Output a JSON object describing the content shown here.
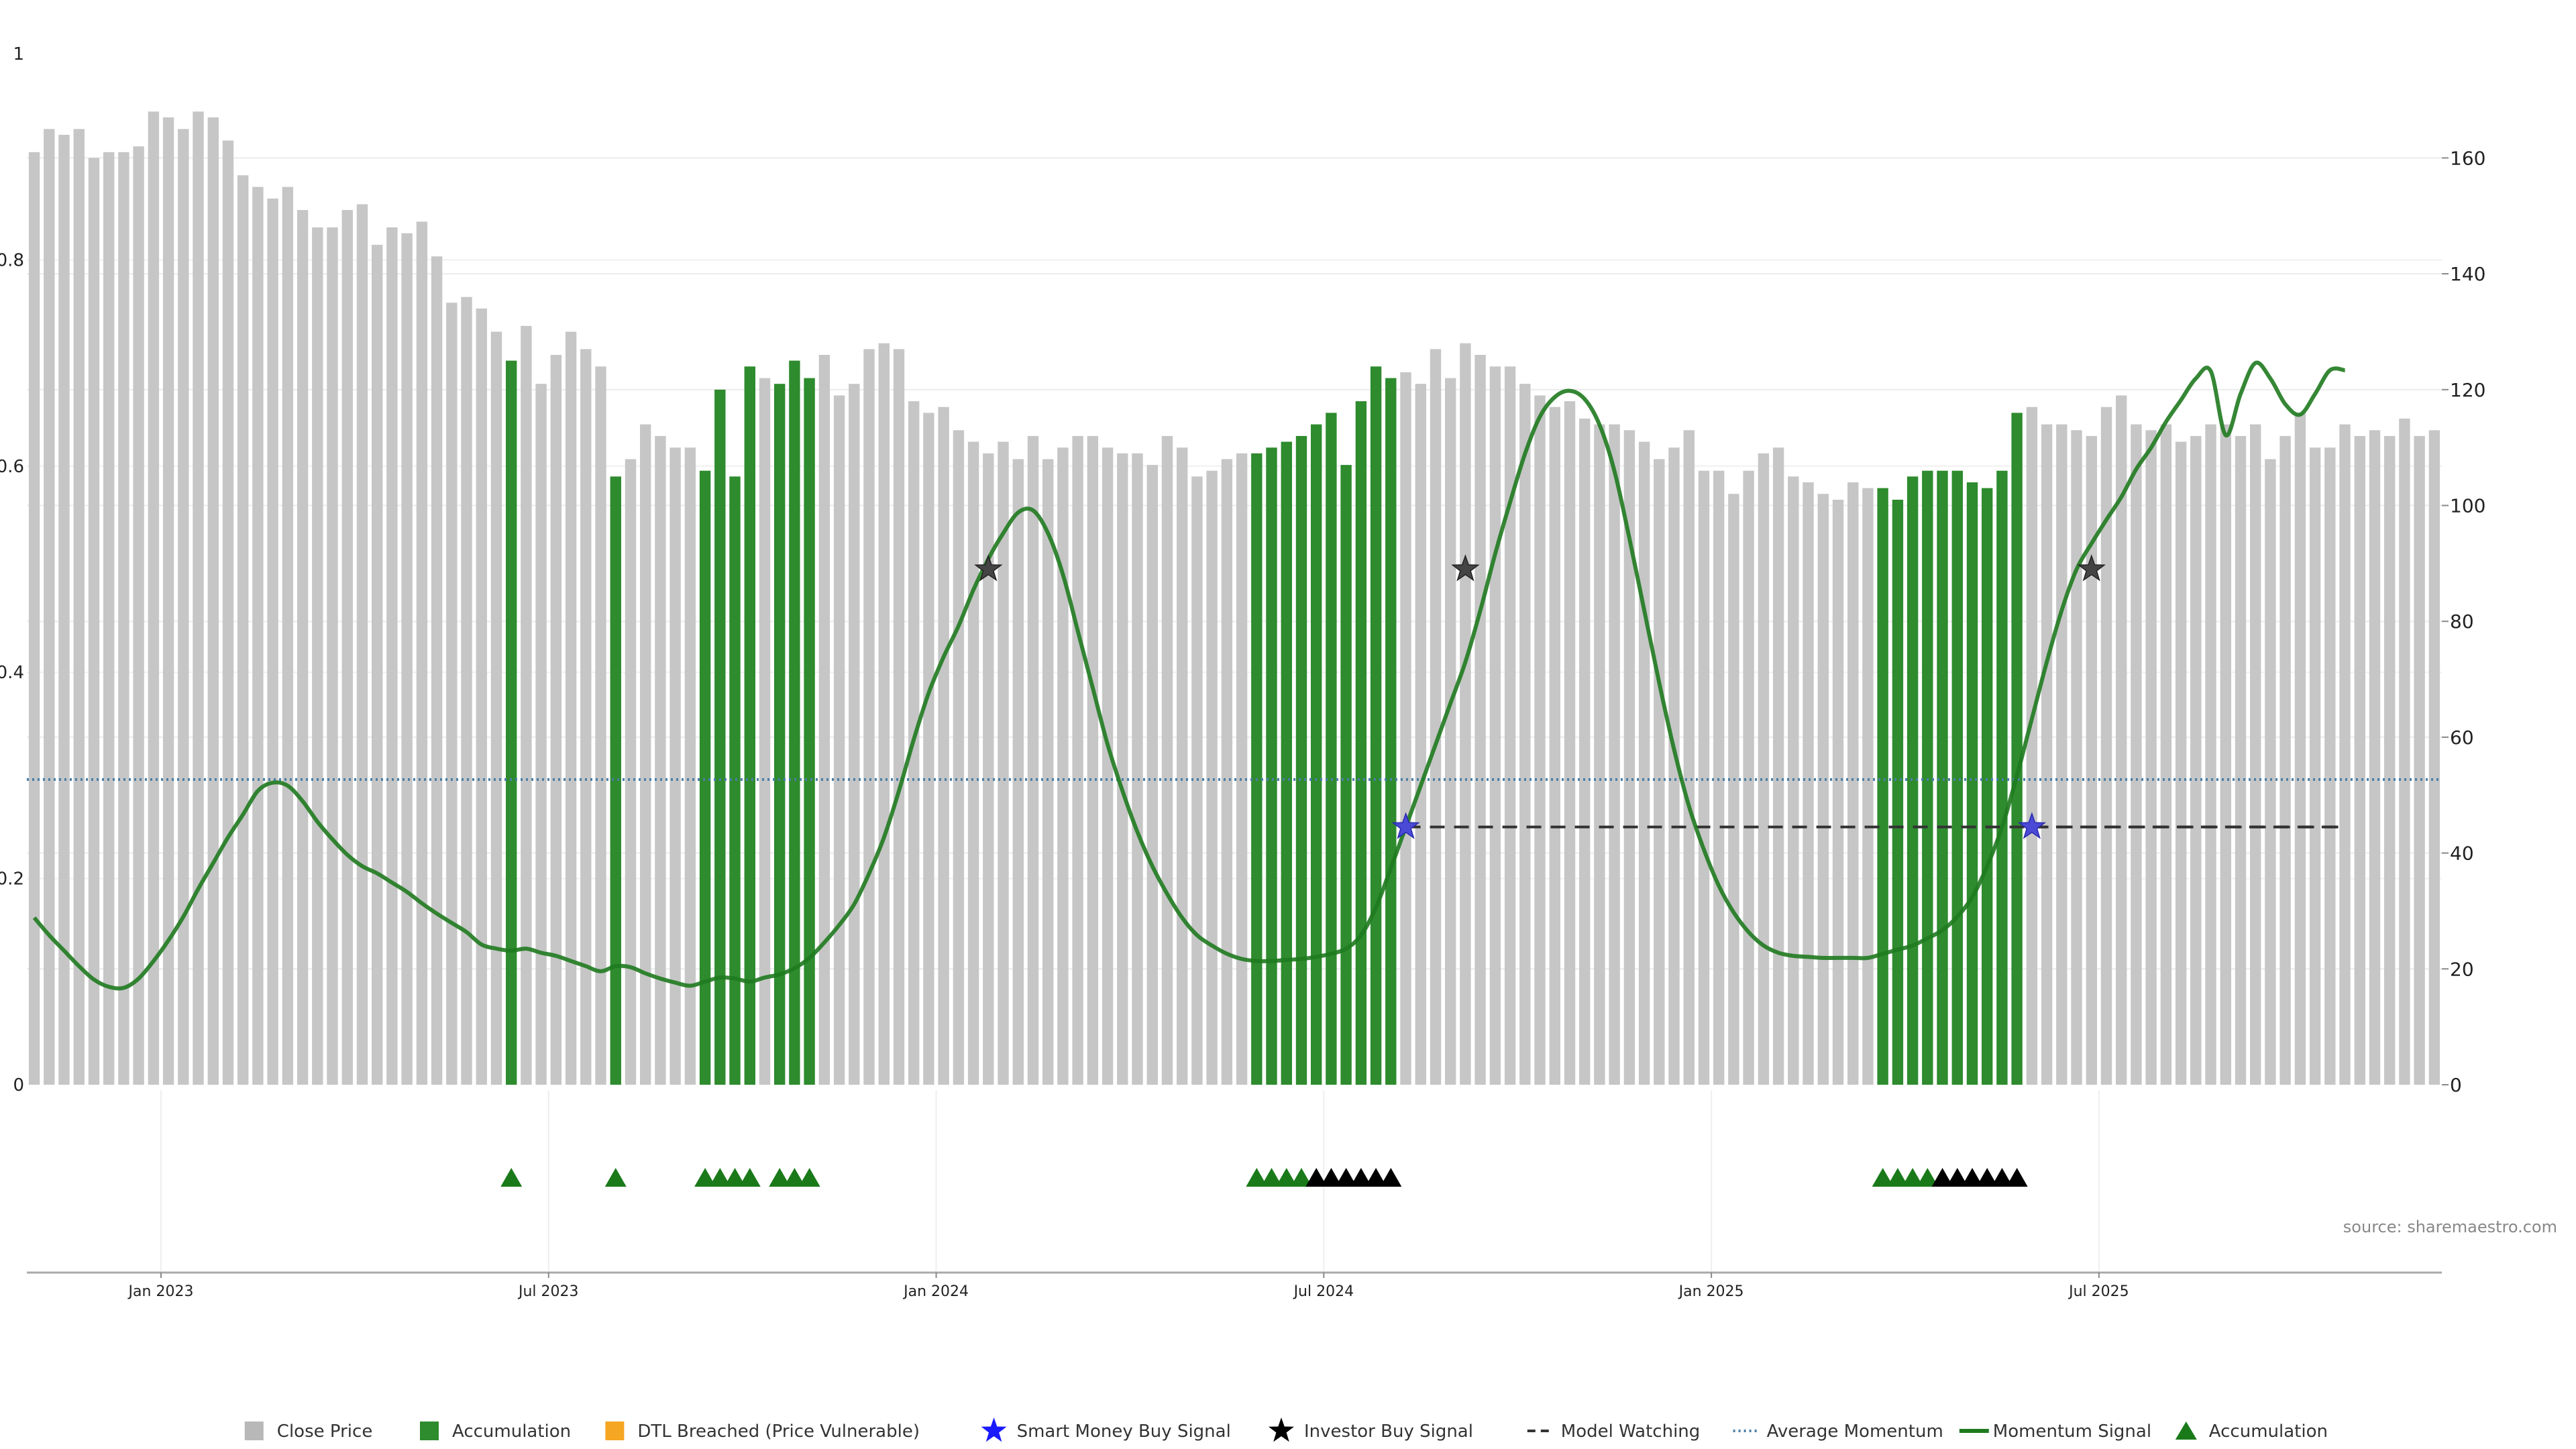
{
  "chart_data": {
    "type": "bar",
    "source": "source: sharemaestro.com",
    "left_axis": {
      "ticks": [
        "0",
        "0.2",
        "0.4",
        "0.6",
        "0.8",
        "1"
      ],
      "ylim": [
        0,
        1
      ]
    },
    "right_axis": {
      "ticks": [
        "0",
        "20",
        "40",
        "60",
        "80",
        "100",
        "120",
        "140",
        "160"
      ],
      "ylim": [
        0,
        178
      ]
    },
    "x_ticks": [
      {
        "label": "Jan 2023",
        "index": 8.5
      },
      {
        "label": "Jul 2023",
        "index": 34.5
      },
      {
        "label": "Jan 2024",
        "index": 60.5
      },
      {
        "label": "Jul 2024",
        "index": 86.5
      },
      {
        "label": "Jan 2025",
        "index": 112.5
      },
      {
        "label": "Jul 2025",
        "index": 138.5
      }
    ],
    "average_momentum": 0.296,
    "model_watching_level": 0.25,
    "colors": {
      "close": "#c6c6c6",
      "accumulation": "#2e8b2e",
      "dtl": "#f5a623",
      "smart_money": "#1a1aff",
      "investor": "#000000",
      "momentum": "#1f7a1f",
      "avg_momentum": "#4a7fa8",
      "marker_green": "#1a7a1a",
      "marker_black": "#000000"
    },
    "series": [
      {
        "name": "Close Price",
        "values": [
          161,
          165,
          164,
          165,
          160,
          161,
          161,
          162,
          168,
          167,
          165,
          168,
          167,
          163,
          157,
          155,
          153,
          155,
          151,
          148,
          148,
          151,
          152,
          145,
          148,
          147,
          149,
          143,
          135,
          136,
          134,
          130,
          125,
          131,
          121,
          126,
          130,
          127,
          124,
          105,
          108,
          114,
          112,
          110,
          110,
          106,
          120,
          105,
          124,
          122,
          121,
          125,
          122,
          126,
          119,
          121,
          127,
          128,
          127,
          118,
          116,
          117,
          113,
          111,
          109,
          111,
          108,
          112,
          108,
          110,
          112,
          112,
          110,
          109,
          109,
          107,
          112,
          110,
          105,
          106,
          108,
          109,
          109,
          110,
          111,
          112,
          114,
          116,
          107,
          118,
          124,
          122,
          123,
          121,
          127,
          122,
          128,
          126,
          124,
          124,
          121,
          119,
          117,
          118,
          115,
          114,
          114,
          113,
          111,
          108,
          110,
          113,
          106,
          106,
          102,
          106,
          109,
          110,
          105,
          104,
          102,
          101,
          104,
          103,
          103,
          101,
          105,
          106,
          106,
          106,
          104,
          103,
          106,
          116,
          117,
          114,
          114,
          113,
          112,
          117,
          119,
          114,
          113,
          114,
          111,
          112,
          114,
          114,
          112,
          114,
          108,
          112,
          116,
          110,
          110,
          114,
          112,
          113,
          112,
          115,
          112,
          113
        ]
      }
    ],
    "accumulation_indices": [
      32,
      39,
      45,
      46,
      47,
      48,
      50,
      51,
      52,
      82,
      83,
      84,
      85,
      86,
      87,
      88,
      89,
      90,
      91,
      124,
      125,
      126,
      127,
      128,
      129,
      130,
      131,
      132,
      133
    ],
    "momentum_signal": [
      [
        0,
        0.162
      ],
      [
        1,
        0.145
      ],
      [
        2,
        0.13
      ],
      [
        3,
        0.115
      ],
      [
        4,
        0.102
      ],
      [
        5,
        0.095
      ],
      [
        6,
        0.094
      ],
      [
        7,
        0.103
      ],
      [
        8,
        0.12
      ],
      [
        9,
        0.14
      ],
      [
        10,
        0.163
      ],
      [
        11,
        0.19
      ],
      [
        12,
        0.215
      ],
      [
        13,
        0.24
      ],
      [
        14,
        0.262
      ],
      [
        15,
        0.285
      ],
      [
        16,
        0.293
      ],
      [
        17,
        0.29
      ],
      [
        18,
        0.275
      ],
      [
        19,
        0.255
      ],
      [
        20,
        0.238
      ],
      [
        21,
        0.223
      ],
      [
        22,
        0.212
      ],
      [
        23,
        0.205
      ],
      [
        24,
        0.196
      ],
      [
        25,
        0.187
      ],
      [
        26,
        0.176
      ],
      [
        27,
        0.166
      ],
      [
        28,
        0.157
      ],
      [
        29,
        0.148
      ],
      [
        30,
        0.136
      ],
      [
        31,
        0.132
      ],
      [
        32,
        0.13
      ],
      [
        33,
        0.132
      ],
      [
        34,
        0.128
      ],
      [
        35,
        0.125
      ],
      [
        36,
        0.12
      ],
      [
        37,
        0.115
      ],
      [
        38,
        0.11
      ],
      [
        39,
        0.115
      ],
      [
        40,
        0.114
      ],
      [
        41,
        0.108
      ],
      [
        42,
        0.103
      ],
      [
        43,
        0.099
      ],
      [
        44,
        0.096
      ],
      [
        45,
        0.1
      ],
      [
        46,
        0.104
      ],
      [
        47,
        0.103
      ],
      [
        48,
        0.1
      ],
      [
        49,
        0.104
      ],
      [
        50,
        0.107
      ],
      [
        51,
        0.113
      ],
      [
        52,
        0.123
      ],
      [
        53,
        0.138
      ],
      [
        54,
        0.155
      ],
      [
        55,
        0.175
      ],
      [
        56,
        0.205
      ],
      [
        57,
        0.24
      ],
      [
        58,
        0.285
      ],
      [
        59,
        0.335
      ],
      [
        60,
        0.38
      ],
      [
        61,
        0.415
      ],
      [
        62,
        0.445
      ],
      [
        63,
        0.48
      ],
      [
        64,
        0.51
      ],
      [
        65,
        0.535
      ],
      [
        66,
        0.555
      ],
      [
        67,
        0.557
      ],
      [
        68,
        0.535
      ],
      [
        69,
        0.495
      ],
      [
        70,
        0.44
      ],
      [
        71,
        0.385
      ],
      [
        72,
        0.33
      ],
      [
        73,
        0.285
      ],
      [
        74,
        0.245
      ],
      [
        75,
        0.212
      ],
      [
        76,
        0.185
      ],
      [
        77,
        0.162
      ],
      [
        78,
        0.145
      ],
      [
        79,
        0.135
      ],
      [
        80,
        0.127
      ],
      [
        81,
        0.122
      ],
      [
        82,
        0.12
      ],
      [
        83,
        0.12
      ],
      [
        84,
        0.121
      ],
      [
        85,
        0.122
      ],
      [
        86,
        0.124
      ],
      [
        87,
        0.127
      ],
      [
        88,
        0.132
      ],
      [
        89,
        0.145
      ],
      [
        90,
        0.172
      ],
      [
        91,
        0.21
      ],
      [
        92,
        0.25
      ],
      [
        93,
        0.29
      ],
      [
        94,
        0.33
      ],
      [
        95,
        0.37
      ],
      [
        96,
        0.41
      ],
      [
        97,
        0.46
      ],
      [
        98,
        0.515
      ],
      [
        99,
        0.565
      ],
      [
        100,
        0.612
      ],
      [
        101,
        0.648
      ],
      [
        102,
        0.667
      ],
      [
        103,
        0.673
      ],
      [
        104,
        0.665
      ],
      [
        105,
        0.64
      ],
      [
        106,
        0.595
      ],
      [
        107,
        0.53
      ],
      [
        108,
        0.46
      ],
      [
        109,
        0.39
      ],
      [
        110,
        0.325
      ],
      [
        111,
        0.27
      ],
      [
        112,
        0.228
      ],
      [
        113,
        0.193
      ],
      [
        114,
        0.167
      ],
      [
        115,
        0.148
      ],
      [
        116,
        0.135
      ],
      [
        117,
        0.128
      ],
      [
        118,
        0.125
      ],
      [
        119,
        0.124
      ],
      [
        120,
        0.123
      ],
      [
        121,
        0.123
      ],
      [
        122,
        0.123
      ],
      [
        123,
        0.123
      ],
      [
        124,
        0.127
      ],
      [
        125,
        0.131
      ],
      [
        126,
        0.135
      ],
      [
        127,
        0.142
      ],
      [
        128,
        0.15
      ],
      [
        129,
        0.163
      ],
      [
        130,
        0.182
      ],
      [
        131,
        0.212
      ],
      [
        132,
        0.25
      ],
      [
        133,
        0.3
      ],
      [
        134,
        0.355
      ],
      [
        135,
        0.41
      ],
      [
        136,
        0.46
      ],
      [
        137,
        0.5
      ],
      [
        138,
        0.525
      ],
      [
        139,
        0.548
      ],
      [
        140,
        0.57
      ],
      [
        141,
        0.597
      ],
      [
        142,
        0.618
      ],
      [
        143,
        0.643
      ],
      [
        144,
        0.664
      ],
      [
        145,
        0.685
      ],
      [
        146,
        0.692
      ],
      [
        147,
        0.63
      ],
      [
        148,
        0.67
      ],
      [
        149,
        0.7
      ],
      [
        150,
        0.685
      ],
      [
        151,
        0.66
      ],
      [
        152,
        0.65
      ],
      [
        153,
        0.67
      ],
      [
        154,
        0.693
      ],
      [
        155,
        0.693
      ]
    ],
    "investor_buy_signals": [
      [
        64,
        0.5
      ],
      [
        96,
        0.5
      ],
      [
        138,
        0.5
      ]
    ],
    "smart_money_buy_signals": [
      [
        92,
        0.25
      ],
      [
        134,
        0.25
      ]
    ],
    "model_watching_ranges": [
      [
        92,
        155
      ],
      [
        134,
        155
      ]
    ],
    "markers_green": [
      32,
      39,
      45,
      46,
      47,
      48,
      50,
      51,
      52,
      82,
      83,
      84,
      85,
      124,
      125,
      126,
      127
    ],
    "markers_black": [
      86,
      87,
      88,
      89,
      90,
      91,
      128,
      129,
      130,
      131,
      132,
      133
    ],
    "legend": [
      {
        "label": "Close Price",
        "kind": "square",
        "color": "#b8b8b8"
      },
      {
        "label": "Accumulation",
        "kind": "square",
        "color": "#2e8b2e"
      },
      {
        "label": "DTL Breached (Price Vulnerable)",
        "kind": "square",
        "color": "#f5a623"
      },
      {
        "label": "Smart Money Buy Signal",
        "kind": "star",
        "color": "#1a1aff"
      },
      {
        "label": "Investor Buy Signal",
        "kind": "star",
        "color": "#000000"
      },
      {
        "label": "Model Watching",
        "kind": "dash",
        "color": "#333333"
      },
      {
        "label": "Average Momentum",
        "kind": "dot",
        "color": "#4a7fa8"
      },
      {
        "label": "Momentum Signal",
        "kind": "line",
        "color": "#1f7a1f"
      },
      {
        "label": "Accumulation",
        "kind": "triangle",
        "color": "#1a7a1a"
      }
    ]
  }
}
